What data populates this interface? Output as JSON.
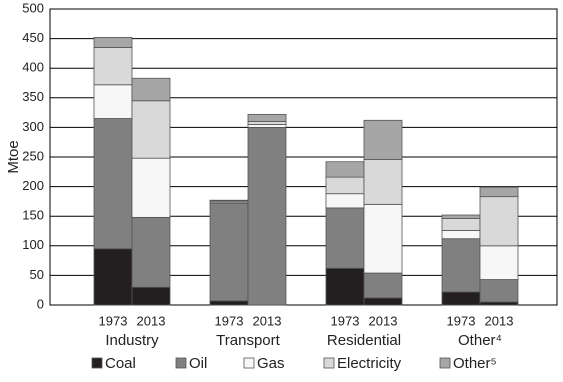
{
  "chart_data": {
    "type": "stacked-bar",
    "y_label": "Mtoe",
    "categories": [
      "1973",
      "2013",
      "1973",
      "2013",
      "1973",
      "2013",
      "1973",
      "2013"
    ],
    "groups": [
      "Industry",
      "Transport",
      "Residential",
      "Other⁴"
    ],
    "series": [
      {
        "name": "Coal",
        "color": "#231f20",
        "values": [
          95,
          30,
          7,
          0,
          62,
          12,
          22,
          5
        ]
      },
      {
        "name": "Oil",
        "color": "#808080",
        "values": [
          220,
          118,
          165,
          300,
          102,
          42,
          90,
          38
        ]
      },
      {
        "name": "Gas",
        "color": "#f7f7f7",
        "values": [
          57,
          100,
          2,
          5,
          24,
          116,
          14,
          57
        ]
      },
      {
        "name": "Electricity",
        "color": "#d9d9d9",
        "values": [
          63,
          97,
          2,
          5,
          28,
          76,
          20,
          83
        ]
      },
      {
        "name": "Other⁵",
        "color": "#a6a6a6",
        "values": [
          17,
          38,
          1,
          12,
          26,
          66,
          6,
          16
        ]
      }
    ],
    "ylim": [
      0,
      500
    ],
    "yticks": [
      0,
      50,
      100,
      150,
      200,
      250,
      300,
      350,
      400,
      450,
      500
    ],
    "grid": true
  }
}
